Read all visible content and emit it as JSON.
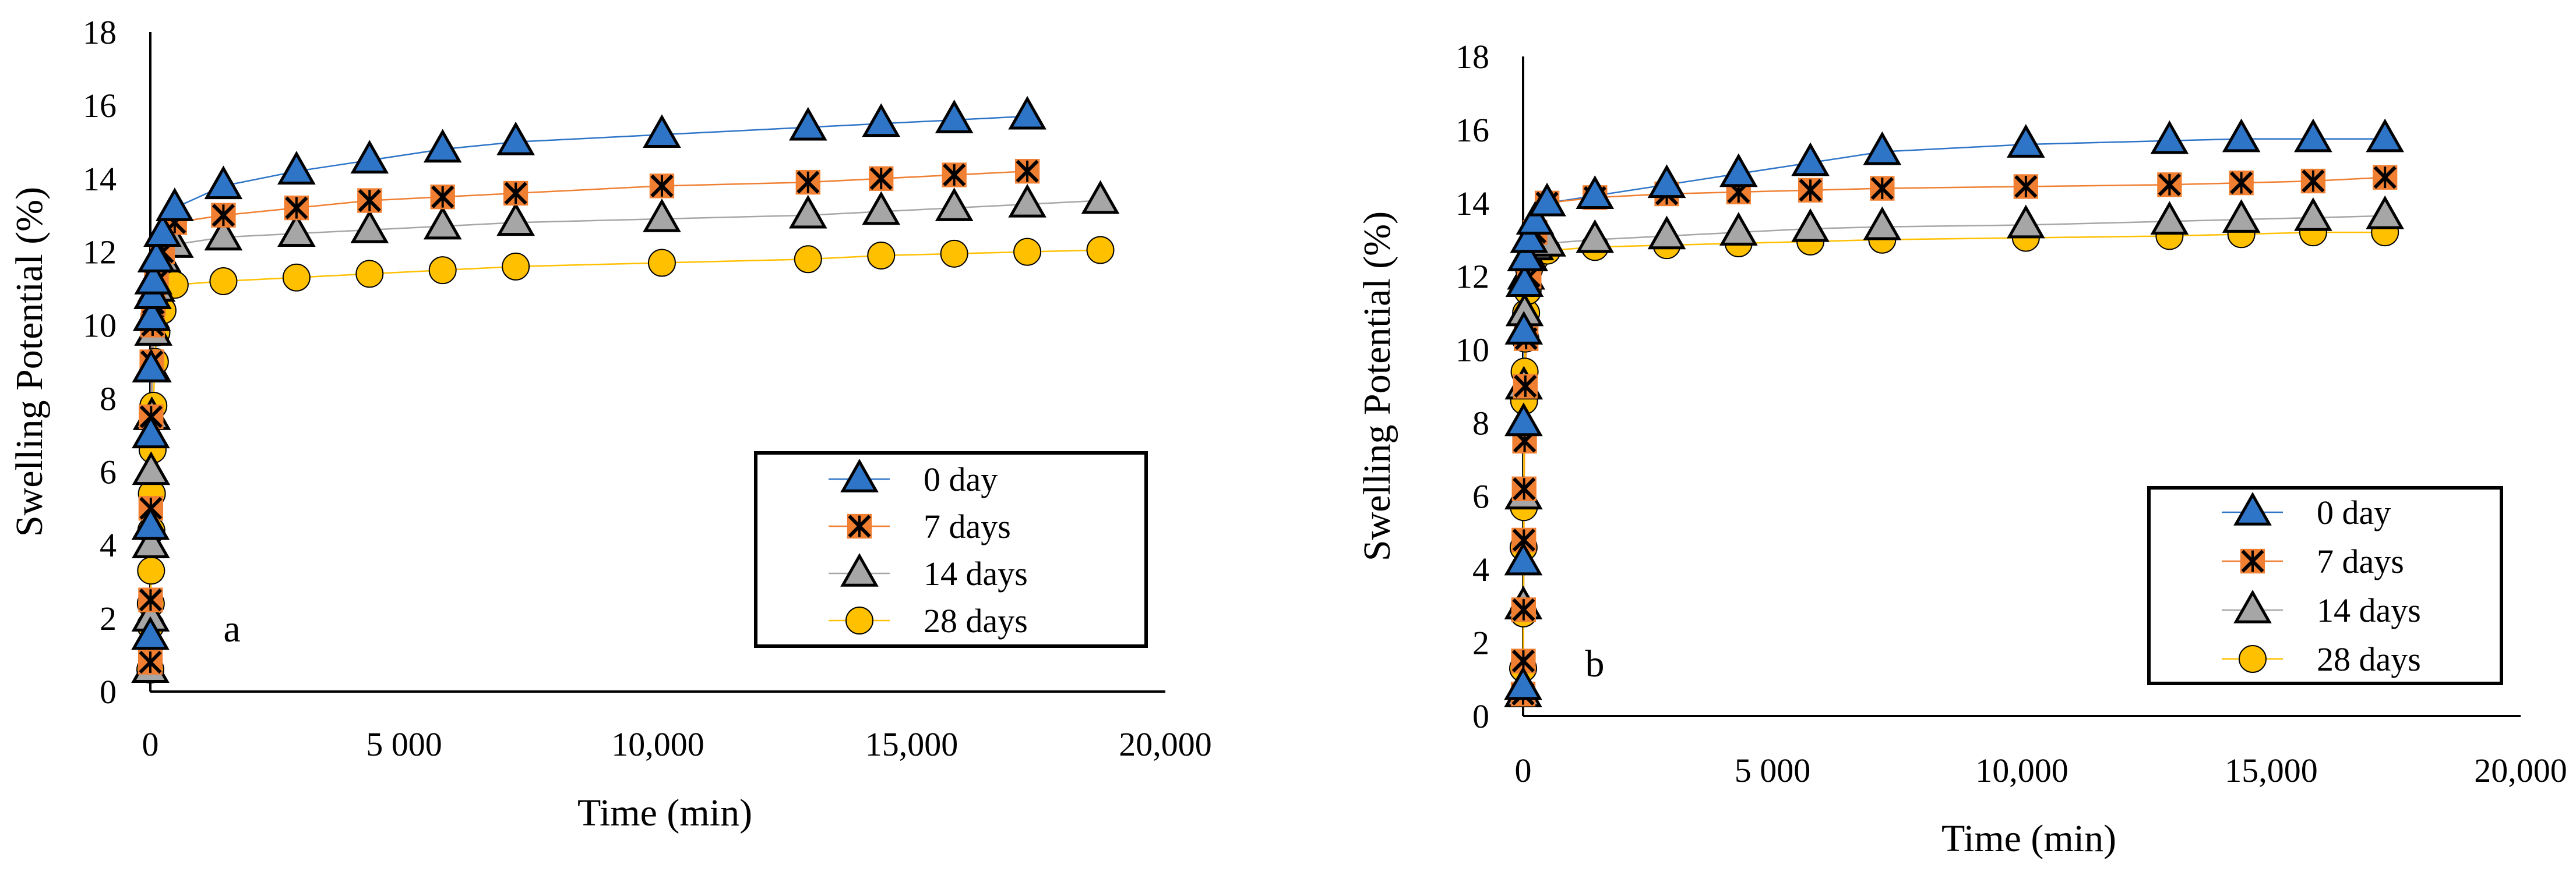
{
  "colors": {
    "day0": "#2E75C8",
    "day7": "#F07F32",
    "day14": "#A6A6A6",
    "day28": "#FFC000",
    "axis": "#000000"
  },
  "chart_data": [
    {
      "type": "scatter",
      "panel_label": "a",
      "xlabel": "Time (min)",
      "ylabel": "Swelling Potential (%)",
      "xlim": [
        0,
        20000
      ],
      "ylim": [
        0,
        18
      ],
      "x_ticks": [
        "0",
        "5 000",
        "10,000",
        "15,000",
        "20,000"
      ],
      "y_ticks": [
        "0",
        "2",
        "4",
        "6",
        "8",
        "10",
        "12",
        "14",
        "16",
        "18"
      ],
      "legend_position": "lower-right",
      "series": [
        {
          "name": "0 day",
          "marker": "triangle",
          "color_key": "day0",
          "x": [
            0,
            5,
            10,
            15,
            30,
            45,
            60,
            120,
            240,
            480,
            1440,
            2880,
            4320,
            5760,
            7200,
            10080,
            12960,
            14400,
            15840,
            17280
          ],
          "y": [
            1.5,
            4.5,
            7.0,
            8.8,
            10.2,
            10.8,
            11.2,
            11.8,
            12.5,
            13.2,
            13.8,
            14.2,
            14.5,
            14.8,
            15.0,
            15.2,
            15.4,
            15.5,
            15.6,
            15.7
          ]
        },
        {
          "name": "7 days",
          "marker": "x-square",
          "color_key": "day7",
          "x": [
            0,
            5,
            10,
            15,
            30,
            45,
            60,
            120,
            240,
            480,
            1440,
            2880,
            4320,
            5760,
            7200,
            10080,
            12960,
            14400,
            15840,
            17280
          ],
          "y": [
            0.8,
            2.5,
            5.0,
            7.5,
            9.0,
            10.0,
            10.6,
            11.2,
            12.0,
            12.8,
            13.0,
            13.2,
            13.4,
            13.5,
            13.6,
            13.8,
            13.9,
            14.0,
            14.1,
            14.2
          ]
        },
        {
          "name": "14 days",
          "marker": "triangle",
          "color_key": "day14",
          "x": [
            0,
            5,
            10,
            15,
            30,
            45,
            60,
            120,
            240,
            480,
            1440,
            2880,
            4320,
            5760,
            7200,
            10080,
            12960,
            14400,
            15840,
            17280,
            18720
          ],
          "y": [
            0.6,
            2.0,
            4.0,
            6.0,
            7.5,
            8.8,
            9.8,
            11.0,
            11.8,
            12.2,
            12.4,
            12.5,
            12.6,
            12.7,
            12.8,
            12.9,
            13.0,
            13.1,
            13.2,
            13.3,
            13.4
          ]
        },
        {
          "name": "28 days",
          "marker": "circle",
          "color_key": "day28",
          "x": [
            0,
            5,
            10,
            15,
            20,
            30,
            45,
            60,
            90,
            120,
            240,
            480,
            1440,
            2880,
            4320,
            5760,
            7200,
            10080,
            12960,
            14400,
            15840,
            17280,
            18720
          ],
          "y": [
            0.6,
            1.8,
            2.4,
            3.3,
            4.4,
            5.4,
            6.6,
            7.8,
            9.0,
            9.8,
            10.4,
            11.1,
            11.2,
            11.3,
            11.4,
            11.5,
            11.6,
            11.7,
            11.8,
            11.9,
            11.95,
            12.0,
            12.05
          ]
        }
      ]
    },
    {
      "type": "scatter",
      "panel_label": "b",
      "xlabel": "Time (min)",
      "ylabel": "Swelling Potential (%)",
      "xlim": [
        0,
        20000
      ],
      "ylim": [
        0,
        18
      ],
      "x_ticks": [
        "0",
        "5 000",
        "10,000",
        "15,000",
        "20,000"
      ],
      "y_ticks": [
        "0",
        "2",
        "4",
        "6",
        "8",
        "10",
        "12",
        "14",
        "16",
        "18"
      ],
      "legend_position": "lower-right",
      "series": [
        {
          "name": "0 day",
          "marker": "triangle",
          "color_key": "day0",
          "x": [
            0,
            5,
            10,
            15,
            30,
            60,
            120,
            240,
            480,
            1440,
            2880,
            4320,
            5760,
            7200,
            10080,
            12960,
            14400,
            15840,
            17280
          ],
          "y": [
            0.8,
            4.2,
            8.0,
            10.5,
            11.8,
            12.5,
            13.0,
            13.5,
            14.0,
            14.2,
            14.5,
            14.8,
            15.1,
            15.4,
            15.6,
            15.7,
            15.75,
            15.75,
            15.75
          ]
        },
        {
          "name": "7 days",
          "marker": "x-square",
          "color_key": "day7",
          "x": [
            0,
            5,
            10,
            15,
            20,
            30,
            45,
            60,
            120,
            240,
            480,
            1440,
            2880,
            4320,
            5760,
            7200,
            10080,
            12960,
            14400,
            15840,
            17280
          ],
          "y": [
            0.6,
            1.5,
            2.9,
            4.8,
            6.2,
            7.5,
            9.0,
            10.3,
            12.0,
            13.2,
            14.0,
            14.15,
            14.25,
            14.3,
            14.35,
            14.4,
            14.45,
            14.5,
            14.55,
            14.6,
            14.7
          ]
        },
        {
          "name": "14 days",
          "marker": "triangle",
          "color_key": "day14",
          "x": [
            0,
            5,
            10,
            15,
            30,
            60,
            120,
            240,
            480,
            1440,
            2880,
            4320,
            5760,
            7200,
            10080,
            12960,
            14400,
            15840,
            17280
          ],
          "y": [
            0.6,
            3.0,
            6.0,
            9.0,
            11.0,
            12.0,
            12.5,
            12.8,
            12.9,
            13.0,
            13.1,
            13.2,
            13.3,
            13.35,
            13.4,
            13.5,
            13.55,
            13.6,
            13.65
          ]
        },
        {
          "name": "28 days",
          "marker": "circle",
          "color_key": "day28",
          "x": [
            0,
            5,
            10,
            15,
            20,
            30,
            45,
            60,
            90,
            120,
            240,
            480,
            1440,
            2880,
            4320,
            5760,
            7200,
            10080,
            12960,
            14400,
            15840,
            17280
          ],
          "y": [
            1.3,
            2.8,
            4.6,
            5.7,
            8.6,
            9.4,
            10.3,
            11.0,
            11.6,
            12.2,
            12.5,
            12.7,
            12.8,
            12.85,
            12.9,
            12.95,
            13.0,
            13.05,
            13.1,
            13.15,
            13.2,
            13.2
          ]
        }
      ]
    }
  ]
}
